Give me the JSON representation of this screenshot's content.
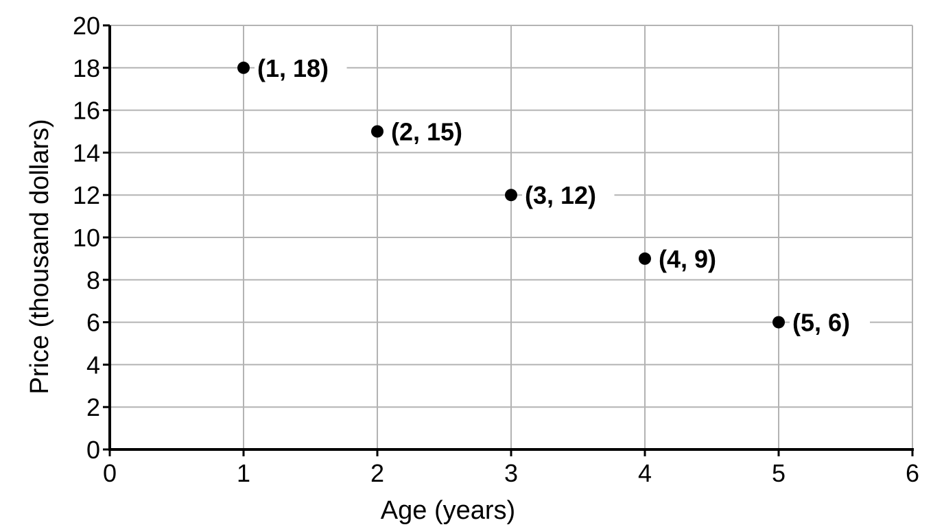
{
  "chart_data": {
    "type": "scatter",
    "xlabel": "Age (years)",
    "ylabel": "Price (thousand dollars)",
    "xlim": [
      0,
      6
    ],
    "ylim": [
      0,
      20
    ],
    "x_ticks": [
      0,
      1,
      2,
      3,
      4,
      5,
      6
    ],
    "y_ticks": [
      0,
      2,
      4,
      6,
      8,
      10,
      12,
      14,
      16,
      18,
      20
    ],
    "x_tick_labels": [
      "0",
      "1",
      "2",
      "3",
      "4",
      "5",
      "6"
    ],
    "y_tick_labels": [
      "0",
      "2",
      "4",
      "6",
      "8",
      "10",
      "12",
      "14",
      "16",
      "18",
      "20"
    ],
    "grid": true,
    "points": [
      {
        "x": 1,
        "y": 18,
        "label": "(1, 18)"
      },
      {
        "x": 2,
        "y": 15,
        "label": "(2, 15)"
      },
      {
        "x": 3,
        "y": 12,
        "label": "(3, 12)"
      },
      {
        "x": 4,
        "y": 9,
        "label": "(4, 9)"
      },
      {
        "x": 5,
        "y": 6,
        "label": "(5, 6)"
      }
    ],
    "marker_color": "#000000",
    "grid_color": "#b3b3b3"
  }
}
